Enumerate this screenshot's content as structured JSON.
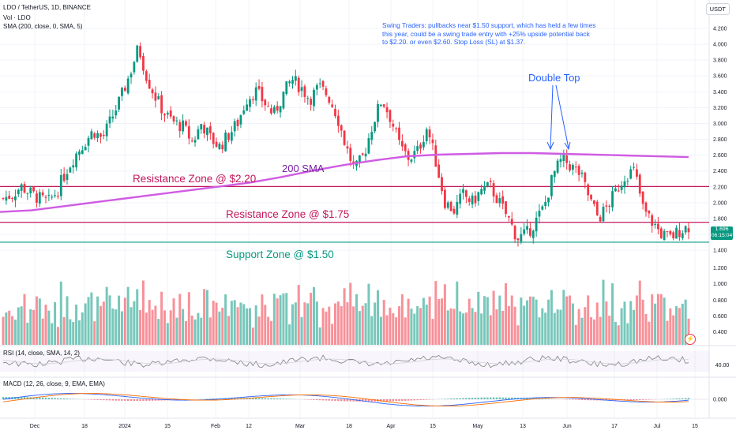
{
  "header": {
    "symbol_line": "LDO / TetherUS, 1D, BINANCE",
    "vol_line": "Vol · LDO",
    "sma_line": "SMA (200, close, 0, SMA, 5)",
    "rsi_line": "RSI (14, close, SMA, 14, 2)",
    "macd_line": "MACD (12, 26, close, 9, EMA, EMA)"
  },
  "currency_button": "USDT",
  "note": "Swing Traders: pullbacks near $1.50 support, which has held a few times this year, could be a swing trade entry with +25% upside potential back to $2.20. or even $2.60. Stop Loss (SL) at $1.37.",
  "labels": {
    "resistance_220": "Resistance Zone @ $2.20",
    "resistance_175": "Resistance Zone @ $1.75",
    "support_150": "Support Zone @ $1.50",
    "sma": "200 SMA",
    "double_top": "Double Top"
  },
  "last_price": {
    "value": "1.696",
    "countdown": "06:15:04"
  },
  "rsi_value": "40.00",
  "colors": {
    "up": "#089981",
    "down": "#f23645",
    "sma": "#d05ce3",
    "resistance": "#c2185b",
    "support": "#089981",
    "accent": "#2962ff"
  },
  "chart_data": {
    "type": "candlestick",
    "xaxis_ticks": [
      "Dec",
      "18",
      "2024",
      "15",
      "Feb",
      "12",
      "Mar",
      "18",
      "Apr",
      "15",
      "May",
      "13",
      "Jun",
      "17",
      "Jul",
      "15"
    ],
    "price_axis_ticks": [
      "4.200",
      "4.000",
      "3.800",
      "3.600",
      "3.400",
      "3.200",
      "3.000",
      "2.800",
      "2.600",
      "2.400",
      "2.200",
      "2.000",
      "1.800",
      "1.600",
      "1.400"
    ],
    "volume_axis_ticks": [
      "1.200",
      "1.000",
      "0.800",
      "0.600",
      "0.400"
    ],
    "rsi_axis_ticks": [
      "40.00"
    ],
    "macd_axis_ticks": [
      "0.000"
    ],
    "levels": {
      "resistance_1": 2.2,
      "resistance_2": 1.75,
      "support": 1.5
    },
    "close_path": [
      2.05,
      2.1,
      2.2,
      2.12,
      2.05,
      2.0,
      2.15,
      2.4,
      2.6,
      2.75,
      2.9,
      2.8,
      3.05,
      3.3,
      3.6,
      3.95,
      3.55,
      3.3,
      3.1,
      3.0,
      2.95,
      2.75,
      3.0,
      2.8,
      2.7,
      2.85,
      3.0,
      3.3,
      3.4,
      3.25,
      3.1,
      3.35,
      3.55,
      3.45,
      3.3,
      3.45,
      3.35,
      3.1,
      2.7,
      2.4,
      2.6,
      3.0,
      3.3,
      3.05,
      2.7,
      2.55,
      2.65,
      2.95,
      2.5,
      2.0,
      1.9,
      2.1,
      2.0,
      2.15,
      2.2,
      2.0,
      1.8,
      1.55,
      1.6,
      1.75,
      1.95,
      2.35,
      2.55,
      2.45,
      2.35,
      2.05,
      1.8,
      1.95,
      2.15,
      2.35,
      2.4,
      1.9,
      1.75,
      1.6,
      1.55,
      1.65,
      1.7
    ],
    "sma200_path": [
      1.88,
      1.9,
      1.95,
      2.0,
      2.05,
      2.1,
      2.15,
      2.2,
      2.25,
      2.32,
      2.4,
      2.47,
      2.53,
      2.58,
      2.6,
      2.61,
      2.62,
      2.62,
      2.61,
      2.6,
      2.59,
      2.58,
      2.57
    ],
    "rsi_range": [
      30,
      70
    ],
    "volume_max": 1.3
  }
}
